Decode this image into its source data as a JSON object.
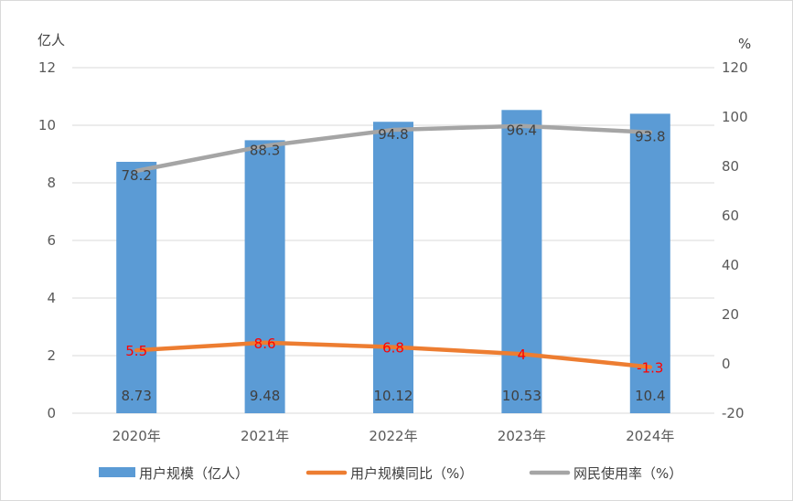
{
  "chart_data": {
    "type": "bar",
    "categories": [
      "2020年",
      "2021年",
      "2022年",
      "2023年",
      "2024年"
    ],
    "left_axis": {
      "unit": "亿人",
      "ylim": [
        0,
        12
      ],
      "ticks": [
        0,
        2,
        4,
        6,
        8,
        10,
        12
      ]
    },
    "right_axis": {
      "unit": "%",
      "ylim": [
        -20,
        120
      ],
      "ticks": [
        -20,
        0,
        20,
        40,
        60,
        80,
        100,
        120
      ]
    },
    "series": [
      {
        "name": "用户规模（亿人）",
        "kind": "bar",
        "axis": "left",
        "color": "#5b9bd5",
        "values": [
          8.73,
          9.48,
          10.12,
          10.53,
          10.4
        ],
        "labels": [
          "8.73",
          "9.48",
          "10.12",
          "10.53",
          "10.4"
        ]
      },
      {
        "name": "用户规模同比（%）",
        "kind": "line",
        "axis": "right",
        "color": "#ed7d31",
        "label_color": "#ff0000",
        "values": [
          5.5,
          8.6,
          6.8,
          4,
          -1.3
        ],
        "labels": [
          "5.5",
          "8.6",
          "6.8",
          "4",
          "-1.3"
        ]
      },
      {
        "name": "网民使用率（%）",
        "kind": "line",
        "axis": "right",
        "color": "#a5a5a5",
        "values": [
          78.2,
          88.3,
          94.8,
          96.4,
          93.8
        ],
        "labels": [
          "78.2",
          "88.3",
          "94.8",
          "96.4",
          "93.8"
        ]
      }
    ],
    "grid": true,
    "legend": "bottom"
  }
}
